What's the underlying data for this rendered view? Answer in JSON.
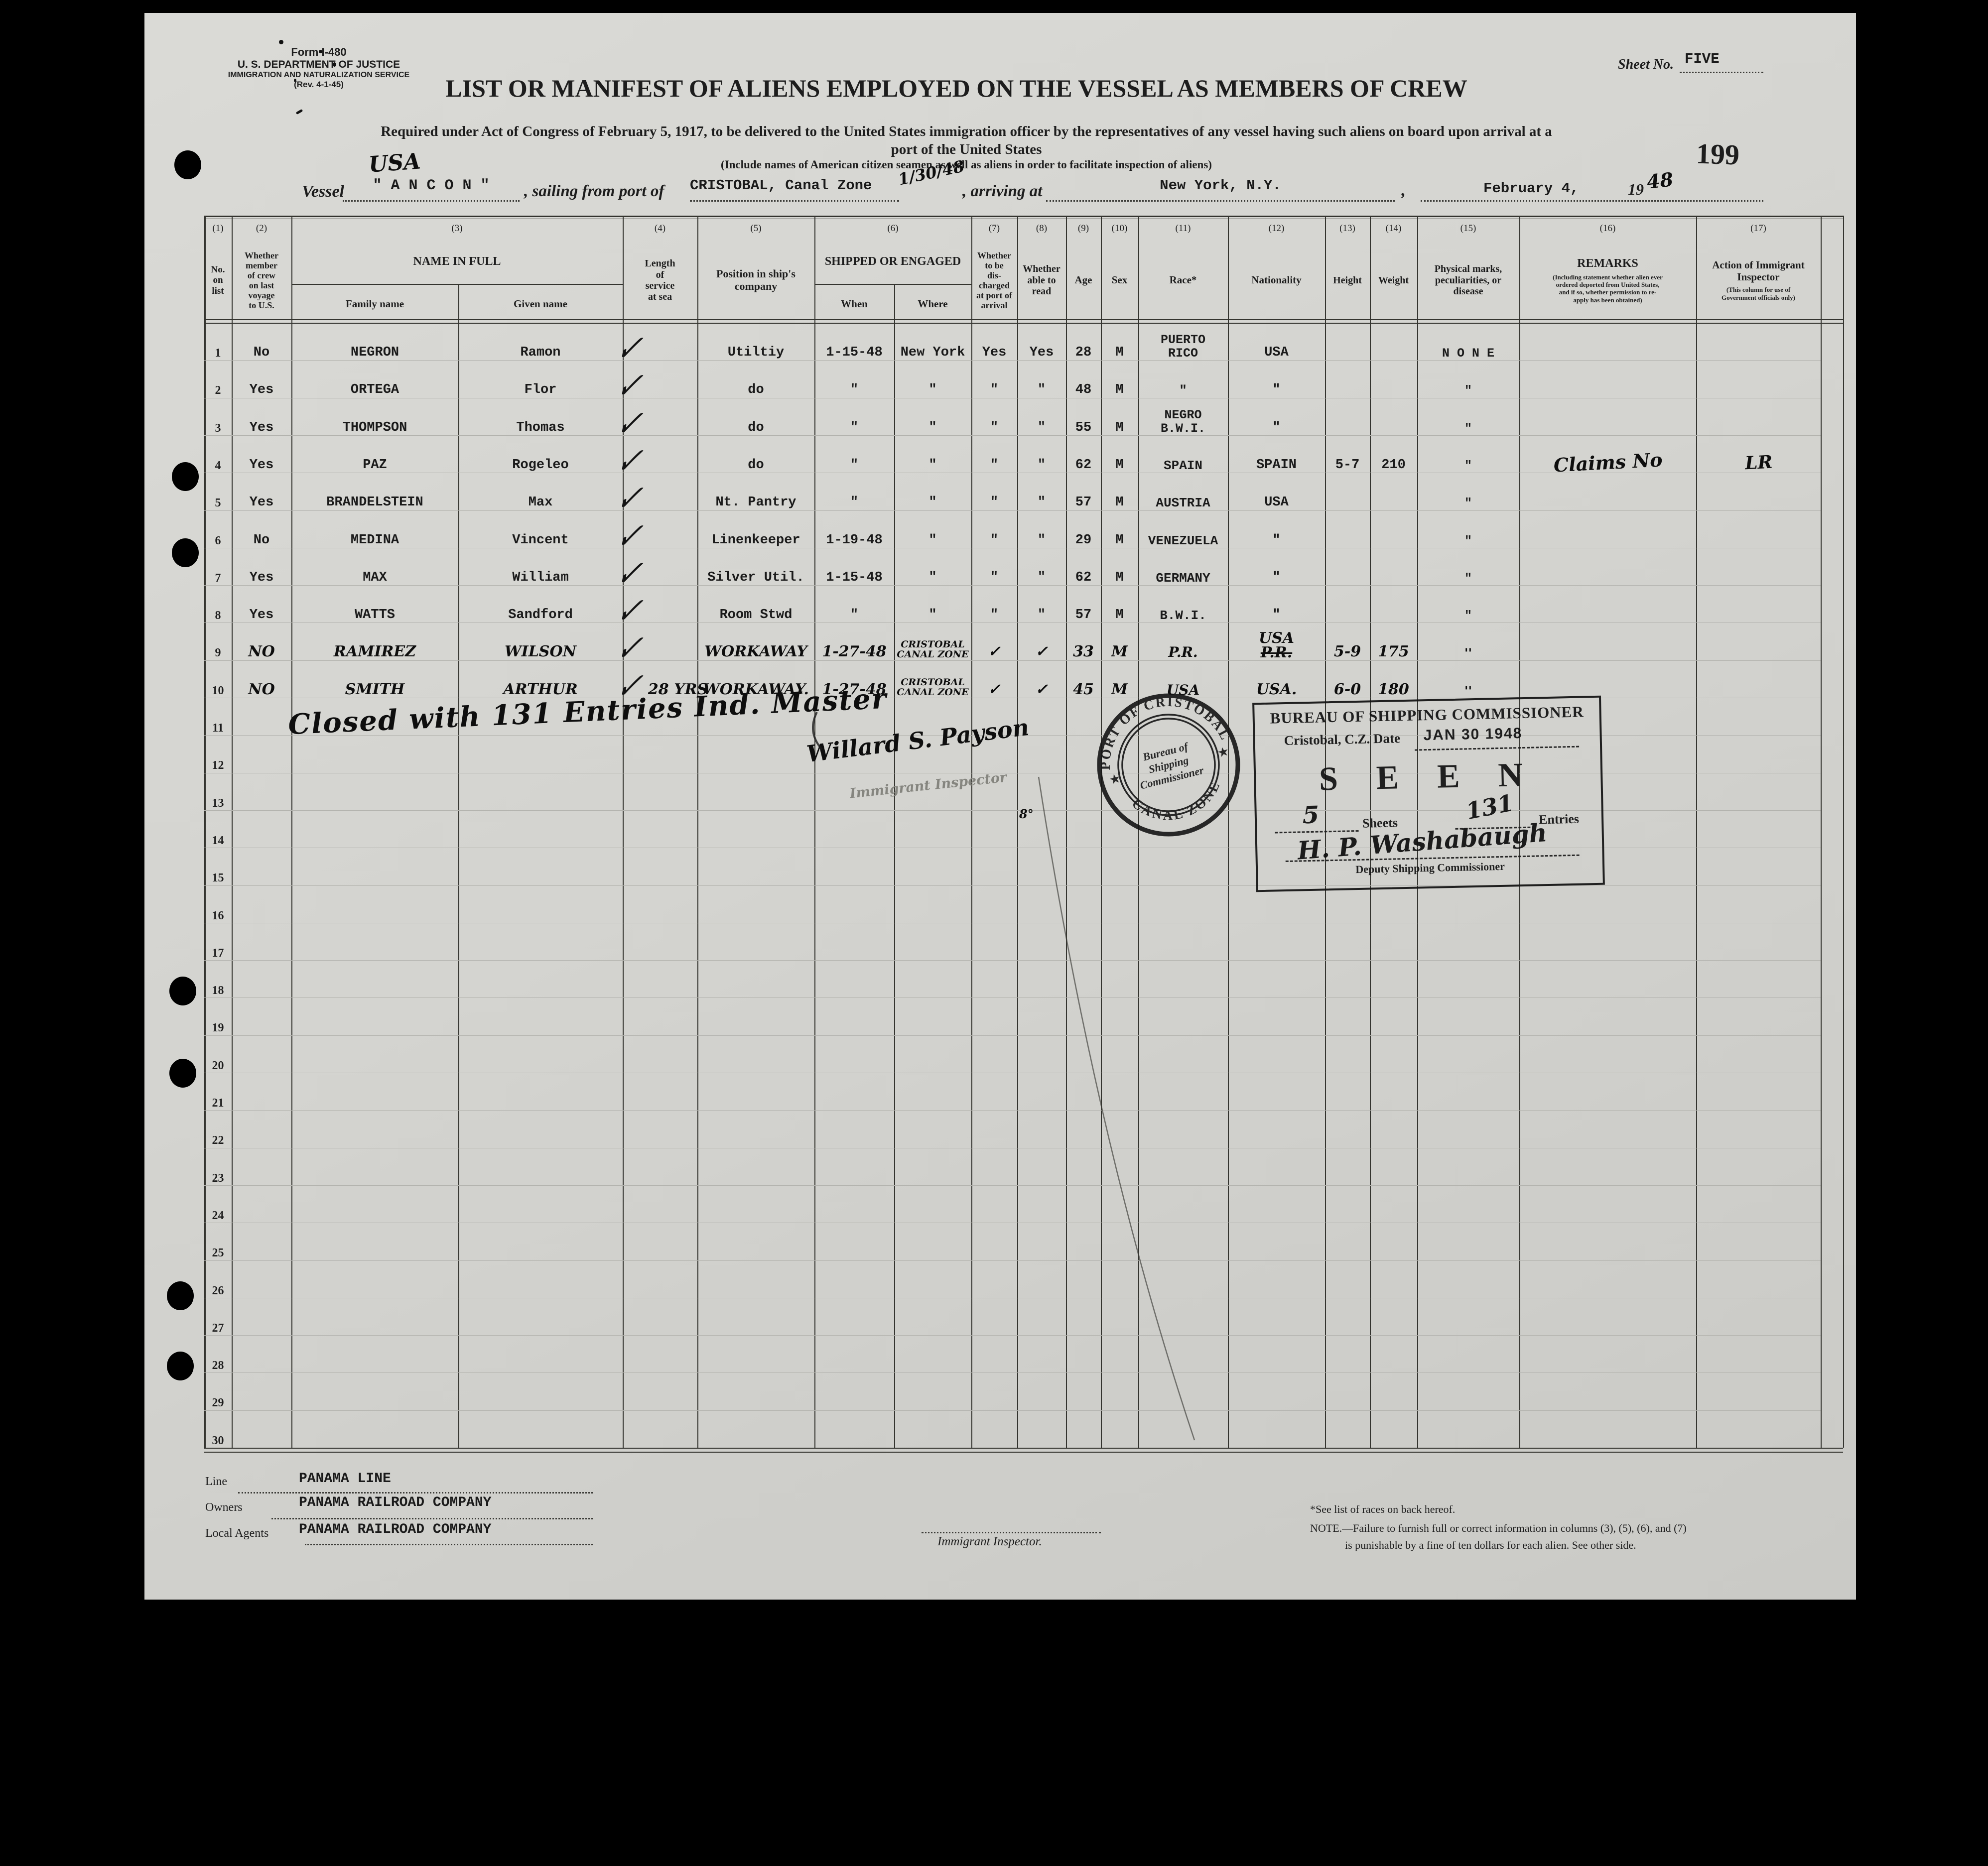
{
  "form": {
    "form_no": "Form I-480",
    "department": "U. S. DEPARTMENT OF JUSTICE",
    "service": "IMMIGRATION AND NATURALIZATION SERVICE",
    "revision": "(Rev. 4-1-45)",
    "sheet_label": "Sheet No.",
    "sheet_value": "FIVE",
    "page_stamp": "199",
    "title": "LIST OR MANIFEST OF ALIENS EMPLOYED ON THE VESSEL AS MEMBERS OF CREW",
    "subtitle1": "Required under Act of Congress of February 5, 1917, to be delivered to the United States immigration officer by the representatives of any vessel having such aliens on board upon arrival at a",
    "subtitle2": "port of the United States",
    "include_note": "(Include names of American citizen seamen as well as aliens in order to facilitate inspection of aliens)"
  },
  "vessel_line": {
    "usa_handwritten": "USA",
    "vessel_label": "Vessel",
    "vessel_name": "\" A N C O N \"",
    "sailing_label": ", sailing from port of",
    "sailing_port": "CRISTOBAL, Canal Zone",
    "sailing_date_handwritten": "1/30/48",
    "arriving_label": ", arriving at",
    "arriving_port": "New York, N.Y.",
    "comma": ",",
    "arrival_date": "February 4,",
    "year_printed": "19",
    "year_handwritten": "48"
  },
  "symbols": {
    "check": "✓",
    "ditto": "″"
  },
  "table": {
    "columns": [
      {
        "num": "(1)",
        "label": "No.\non\nlist"
      },
      {
        "num": "(2)",
        "label": "Whether\nmember\nof crew\non last\nvoyage\nto U.S."
      },
      {
        "num": "(3)",
        "label": "NAME IN FULL",
        "subs": [
          "Family name",
          "Given name"
        ]
      },
      {
        "num": "(4)",
        "label": "Length\nof\nservice\nat sea"
      },
      {
        "num": "(5)",
        "label": "Position in ship's\ncompany"
      },
      {
        "num": "(6)",
        "label": "SHIPPED OR ENGAGED",
        "subs": [
          "When",
          "Where"
        ]
      },
      {
        "num": "(7)",
        "label": "Whether\nto be\ndis-\ncharged\nat port of\narrival"
      },
      {
        "num": "(8)",
        "label": "Whether\nable to\nread"
      },
      {
        "num": "(9)",
        "label": "Age"
      },
      {
        "num": "(10)",
        "label": "Sex"
      },
      {
        "num": "(11)",
        "label": "Race*"
      },
      {
        "num": "(12)",
        "label": "Nationality"
      },
      {
        "num": "(13)",
        "label": "Height"
      },
      {
        "num": "(14)",
        "label": "Weight"
      },
      {
        "num": "(15)",
        "label": "Physical marks,\npeculiarities, or\ndisease"
      },
      {
        "num": "(16)",
        "label": "REMARKS",
        "small": "(Including statement whether alien ever\nordered deported from United States,\nand if so, whether permission to re-\napply has been obtained)"
      },
      {
        "num": "(17)",
        "label": "Action of Immigrant\nInspector",
        "small": "(This column for use of\nGovernment officials only)"
      }
    ],
    "rows": [
      {
        "no": "1",
        "member": "No",
        "family": "NEGRON",
        "given": "Ramon",
        "check": true,
        "service": "",
        "position": "Utiltiy",
        "when": "1-15-48",
        "where": "New York",
        "discharged": "Yes",
        "read": "Yes",
        "age": "28",
        "sex": "M",
        "race": "PUERTO\nRICO",
        "nationality": "USA",
        "height": "",
        "weight": "",
        "marks": "N O N E",
        "remarks": "",
        "action": ""
      },
      {
        "no": "2",
        "member": "Yes",
        "family": "ORTEGA",
        "given": "Flor",
        "check": true,
        "service": "",
        "position": "do",
        "when": "″",
        "where": "″",
        "discharged": "″",
        "read": "″",
        "age": "48",
        "sex": "M",
        "race": "″",
        "nationality": "″",
        "height": "",
        "weight": "",
        "marks": "″",
        "remarks": "",
        "action": ""
      },
      {
        "no": "3",
        "member": "Yes",
        "family": "THOMPSON",
        "given": "Thomas",
        "check": true,
        "service": "",
        "position": "do",
        "when": "″",
        "where": "″",
        "discharged": "″",
        "read": "″",
        "age": "55",
        "sex": "M",
        "race": "NEGRO\nB.W.I.",
        "nationality": "″",
        "height": "",
        "weight": "",
        "marks": "″",
        "remarks": "",
        "action": ""
      },
      {
        "no": "4",
        "member": "Yes",
        "family": "PAZ",
        "given": "Rogeleo",
        "check": true,
        "service": "",
        "position": "do",
        "when": "″",
        "where": "″",
        "discharged": "″",
        "read": "″",
        "age": "62",
        "sex": "M",
        "race": "SPAIN",
        "nationality": "SPAIN",
        "height": "5-7",
        "weight": "210",
        "marks": "″",
        "remarks": "Claims No",
        "remarks_hw": true,
        "action": "LR",
        "action_hw": true
      },
      {
        "no": "5",
        "member": "Yes",
        "family": "BRANDELSTEIN",
        "given": "Max",
        "check": true,
        "service": "",
        "position": "Nt. Pantry",
        "when": "″",
        "where": "″",
        "discharged": "″",
        "read": "″",
        "age": "57",
        "sex": "M",
        "race": "AUSTRIA",
        "nationality": "USA",
        "height": "",
        "weight": "",
        "marks": "″",
        "remarks": "",
        "action": ""
      },
      {
        "no": "6",
        "member": "No",
        "family": "MEDINA",
        "given": "Vincent",
        "check": true,
        "service": "",
        "position": "Linenkeeper",
        "when": "1-19-48",
        "where": "″",
        "discharged": "″",
        "read": "″",
        "age": "29",
        "sex": "M",
        "race": "VENEZUELA",
        "nationality": "″",
        "height": "",
        "weight": "",
        "marks": "″",
        "remarks": "",
        "action": ""
      },
      {
        "no": "7",
        "member": "Yes",
        "family": "MAX",
        "given": "William",
        "check": true,
        "service": "",
        "position": "Silver Util.",
        "when": "1-15-48",
        "where": "″",
        "discharged": "″",
        "read": "″",
        "age": "62",
        "sex": "M",
        "race": "GERMANY",
        "nationality": "″",
        "height": "",
        "weight": "",
        "marks": "″",
        "remarks": "",
        "action": ""
      },
      {
        "no": "8",
        "member": "Yes",
        "family": "WATTS",
        "given": "Sandford",
        "check": true,
        "service": "",
        "position": "Room Stwd",
        "when": "″",
        "where": "″",
        "discharged": "″",
        "read": "″",
        "age": "57",
        "sex": "M",
        "race": "B.W.I.",
        "nationality": "″",
        "height": "",
        "weight": "",
        "marks": "″",
        "remarks": "",
        "action": ""
      },
      {
        "no": "9",
        "hw": true,
        "member": "NO",
        "family": "RAMIREZ",
        "given": "WILSON",
        "check": true,
        "service": "",
        "position": "WORKAWAY",
        "when": "1-27-48",
        "where": "CRISTOBAL\nCANAL ZONE",
        "discharged": "✓",
        "read": "✓",
        "age": "33",
        "sex": "M",
        "race": "P.R.",
        "nationality": "USA",
        "nationality_struck": "P.R.",
        "height": "5-9",
        "weight": "175",
        "marks": "''",
        "remarks": "",
        "action": ""
      },
      {
        "no": "10",
        "hw": true,
        "member": "NO",
        "family": "SMITH",
        "given": "ARTHUR",
        "check": true,
        "service": "28 YRS",
        "position": "WORKAWAY.",
        "when": "1-27-48",
        "where": "CRISTOBAL\nCANAL ZONE",
        "discharged": "✓",
        "read": "✓",
        "age": "45",
        "sex": "M",
        "race": "USA",
        "nationality": "USA.",
        "height": "6-0",
        "weight": "180",
        "marks": "''",
        "remarks": "",
        "action": ""
      },
      {
        "no": "11"
      },
      {
        "no": "12"
      },
      {
        "no": "13"
      },
      {
        "no": "14"
      },
      {
        "no": "15"
      },
      {
        "no": "16"
      },
      {
        "no": "17"
      },
      {
        "no": "18"
      },
      {
        "no": "19"
      },
      {
        "no": "20"
      },
      {
        "no": "21"
      },
      {
        "no": "22"
      },
      {
        "no": "23"
      },
      {
        "no": "24"
      },
      {
        "no": "25"
      },
      {
        "no": "26"
      },
      {
        "no": "27"
      },
      {
        "no": "28"
      },
      {
        "no": "29"
      },
      {
        "no": "30"
      }
    ]
  },
  "annotations": {
    "closed_note": "Closed with 131 Entries Ind. Master",
    "inspector_signature": "Willard S. Payson",
    "inspector_signature_title": "Immigrant Inspector",
    "stray_mark": "8°"
  },
  "stamps": {
    "circular": {
      "top_arc": "PORT OF CRISTOBAL",
      "bottom_arc": "CANAL ZONE",
      "star": "★",
      "center_line1": "Bureau of",
      "center_line2": "Shipping",
      "center_line3": "Commissioner"
    },
    "box": {
      "title": "BUREAU OF SHIPPING COMMISSIONER",
      "place_label": "Cristobal, C.Z. Date",
      "date": "JAN 30 1948",
      "seen": "S E E N",
      "sheets_value": "5",
      "sheets_label": "Sheets",
      "entries_value": "131",
      "entries_label": "Entries",
      "signature": "H. P. Washabaugh",
      "signature_title": "Deputy Shipping Commissioner"
    }
  },
  "footer": {
    "line_label": "Line",
    "line_value": "PANAMA  LINE",
    "owners_label": "Owners",
    "owners_value": "PANAMA RAILROAD COMPANY",
    "agents_label": "Local Agents",
    "agents_value": "PANAMA RAILROAD COMPANY",
    "inspector_label": "Immigrant Inspector.",
    "races_note": "*See list of races on back hereof.",
    "note_line1": "NOTE.—Failure to furnish full or correct information in columns (3), (5), (6), and (7)",
    "note_line2": "is punishable by a fine of ten dollars for each alien.   See other side."
  }
}
